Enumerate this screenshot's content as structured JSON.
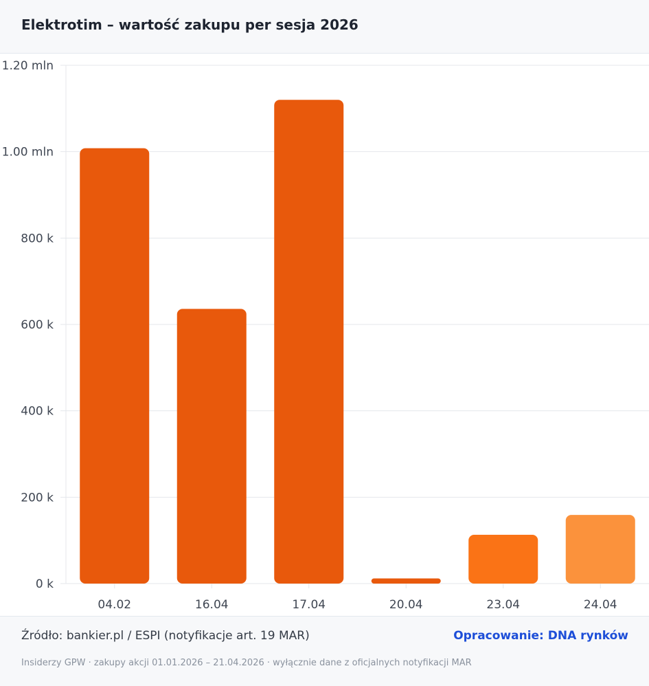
{
  "header": {
    "title": "Elektrotim – wartość zakupu per sesja 2026"
  },
  "footer": {
    "source": "Źródło: bankier.pl / ESPI (notyfikacje art. 19 MAR)",
    "credit": "Opracowanie: DNA rynków",
    "note": "Insiderzy GPW · zakupy akcji 01.01.2026 – 21.04.2026 · wyłącznie dane z oficjalnych notyfikacji MAR"
  },
  "colors": {
    "bar_main": "#e8590c",
    "bar_mid": "#fa7316",
    "bar_light": "#fb923c",
    "grid": "#e5e7eb",
    "accent": "#1d4ed8"
  },
  "chart_data": {
    "type": "bar",
    "title": "Elektrotim – wartość zakupu per sesja 2026",
    "xlabel": "",
    "ylabel": "",
    "categories": [
      "04.02",
      "16.04",
      "17.04",
      "20.04",
      "23.04",
      "24.04"
    ],
    "values": [
      1008000,
      636000,
      1120000,
      12000,
      113000,
      159000
    ],
    "bar_colors": [
      "#e8590c",
      "#e8590c",
      "#e8590c",
      "#e8590c",
      "#fa7316",
      "#fb923c"
    ],
    "ylim": [
      0,
      1200000
    ],
    "yticks": [
      0,
      200000,
      400000,
      600000,
      800000,
      1000000,
      1200000
    ],
    "ytick_labels": [
      "0 k",
      "200 k",
      "400 k",
      "600 k",
      "800 k",
      "1.00 mln",
      "1.20 mln"
    ],
    "grid": true,
    "legend": "none"
  }
}
